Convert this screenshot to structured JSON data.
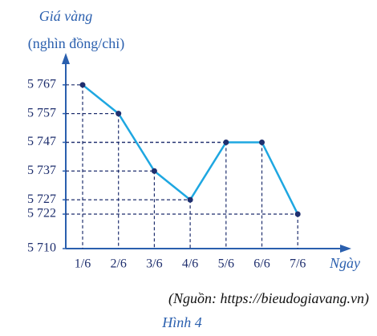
{
  "chart_data": {
    "type": "line",
    "y_label": [
      "Giá vàng",
      "(nghìn đồng/chỉ)"
    ],
    "x_label": "Ngày",
    "source": "(Nguồn: https://bieudogiavang.vn)",
    "caption": "Hình 4",
    "categories": [
      "1/6",
      "2/6",
      "3/6",
      "4/6",
      "5/6",
      "6/6",
      "7/6"
    ],
    "values": [
      5767,
      5757,
      5737,
      5727,
      5747,
      5747,
      5722
    ],
    "color": "#1ea7e1",
    "marker_color": "#1f2f6e",
    "ylim": [
      5710,
      5777
    ],
    "yticks": [
      {
        "value": 5710,
        "label": "5 710"
      },
      {
        "value": 5722,
        "label": "5 722"
      },
      {
        "value": 5727,
        "label": "5 727"
      },
      {
        "value": 5737,
        "label": "5 737"
      },
      {
        "value": 5747,
        "label": "5 747"
      },
      {
        "value": 5757,
        "label": "5 757"
      },
      {
        "value": 5767,
        "label": "5 767"
      }
    ]
  }
}
